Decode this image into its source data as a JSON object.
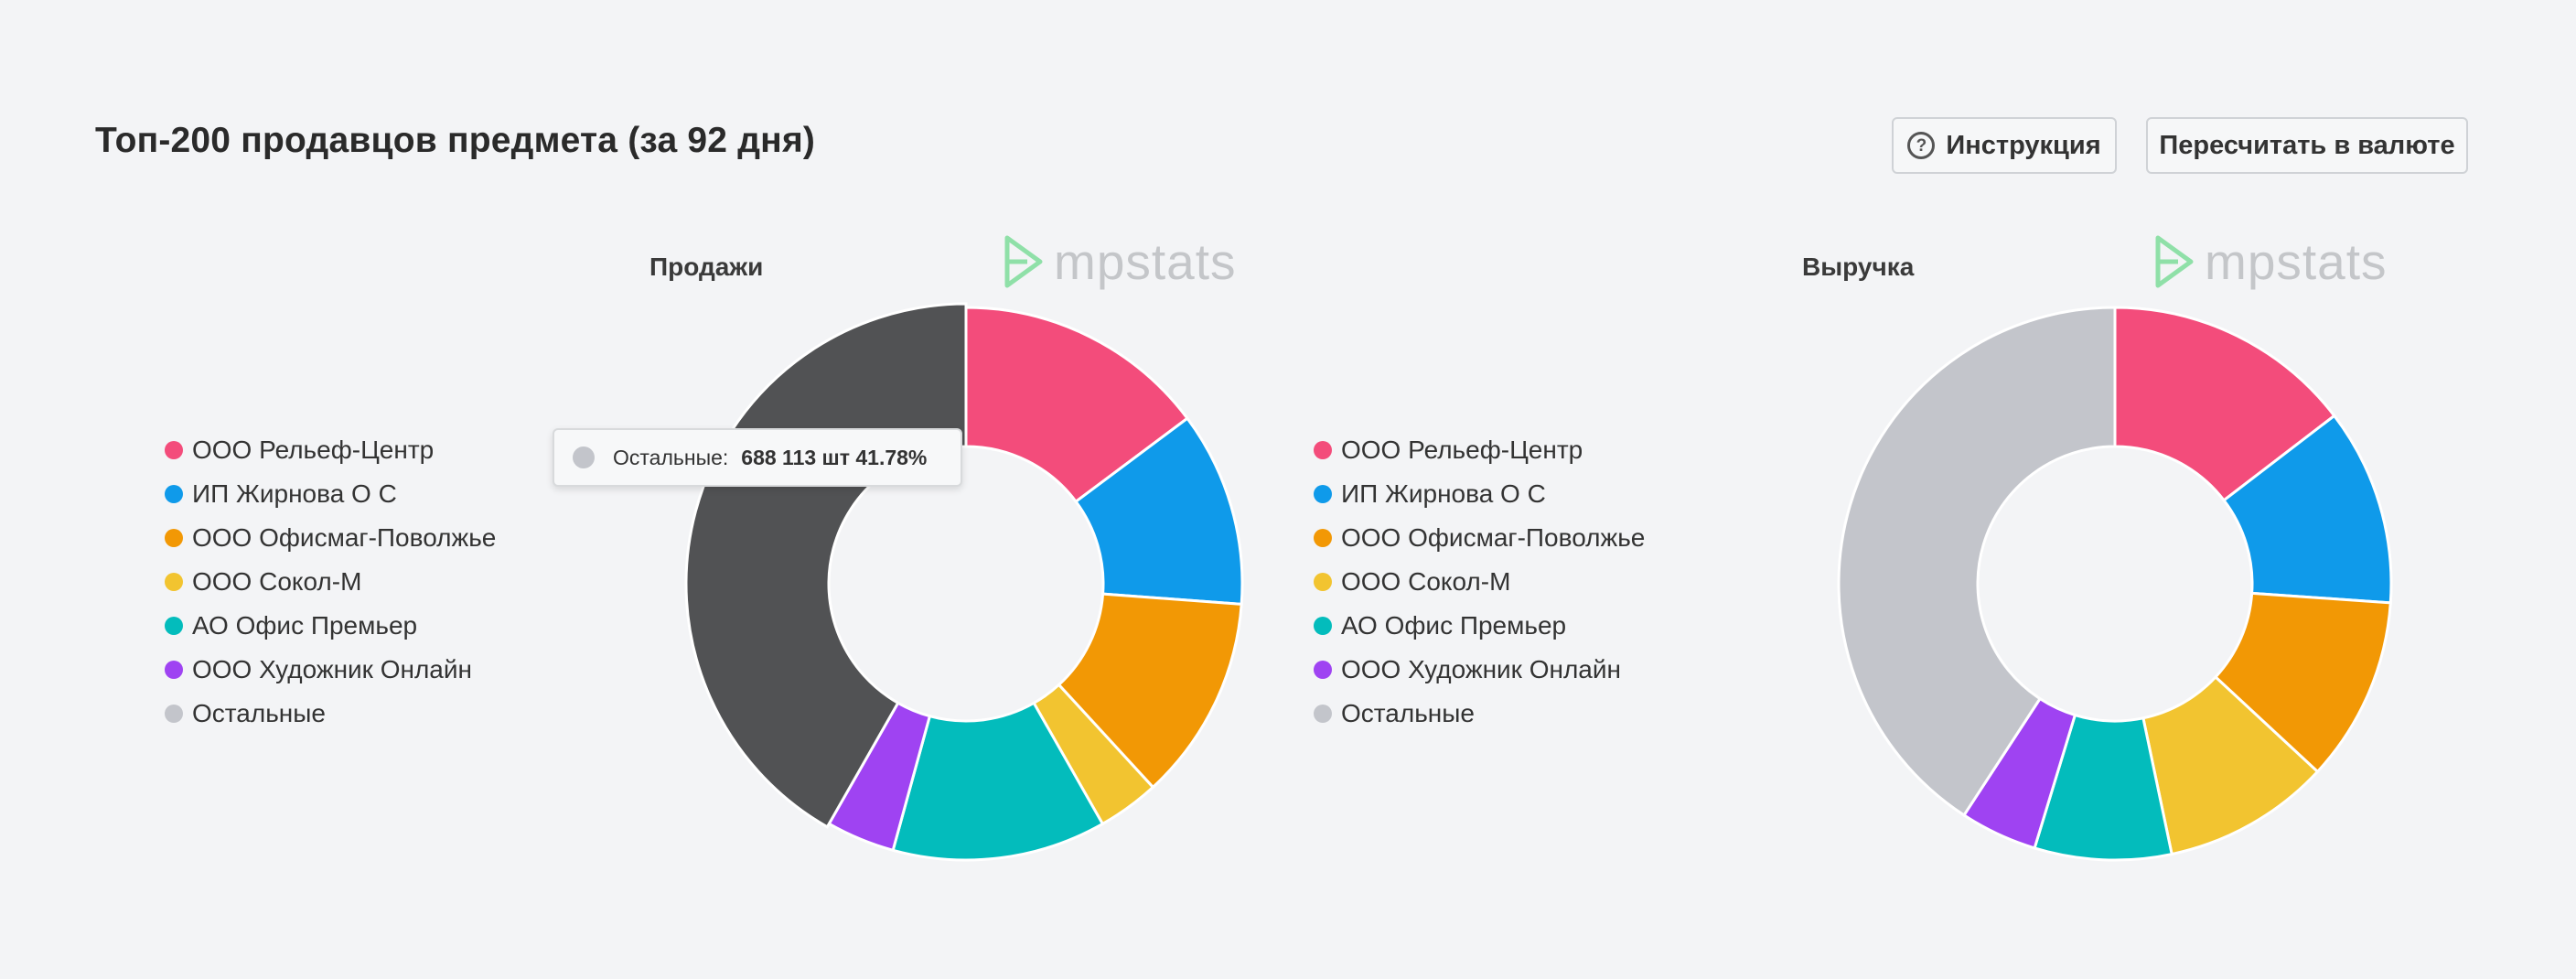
{
  "page": {
    "title": "Топ-200 продавцов предмета (за 92 дня)"
  },
  "buttons": {
    "instruction": "Инструкция",
    "recalc": "Пересчитать в валюте"
  },
  "watermark": {
    "text": "mpstats",
    "color": "#8fe0a8"
  },
  "legend": [
    {
      "label": "ООО Рельеф-Центр",
      "color": "#f34c7b"
    },
    {
      "label": "ИП Жирнова О С",
      "color": "#0f9aea"
    },
    {
      "label": "ООО Офисмаг-Поволжье",
      "color": "#f29805"
    },
    {
      "label": "ООО Сокол-М",
      "color": "#f2c430"
    },
    {
      "label": "АО Офис Премьер",
      "color": "#03bcbc"
    },
    {
      "label": "ООО Художник Онлайн",
      "color": "#9f43f2"
    },
    {
      "label": "Остальные",
      "color": "#c3c5cb"
    }
  ],
  "tooltip": {
    "label": "Остальные:",
    "value": "688 113 шт 41.78%",
    "color": "#c3c5cb"
  },
  "highlight_color": "#515254",
  "chart_data": [
    {
      "type": "pie",
      "title": "Продажи",
      "categories": [
        "ООО Рельеф-Центр",
        "ИП Жирнова О С",
        "ООО Офисмаг-Поволжье",
        "ООО Сокол-М",
        "АО Офис Премьер",
        "ООО Художник Онлайн",
        "Остальные"
      ],
      "values": [
        14.8,
        11.4,
        12.0,
        3.6,
        12.5,
        4.0,
        41.78
      ],
      "colors": [
        "#f34c7b",
        "#0f9aea",
        "#f29805",
        "#f2c430",
        "#03bcbc",
        "#9f43f2",
        "#c3c5cb"
      ],
      "highlighted": "Остальные"
    },
    {
      "type": "pie",
      "title": "Выручка",
      "categories": [
        "ООО Рельеф-Центр",
        "ИП Жирнова О С",
        "ООО Офисмаг-Поволжье",
        "ООО Сокол-М",
        "АО Офис Премьер",
        "ООО Художник Онлайн",
        "Остальные"
      ],
      "values": [
        14.6,
        11.5,
        10.8,
        9.8,
        8.0,
        4.5,
        40.8
      ],
      "colors": [
        "#f34c7b",
        "#0f9aea",
        "#f29805",
        "#f2c430",
        "#03bcbc",
        "#9f43f2",
        "#c3c5cb"
      ]
    }
  ]
}
